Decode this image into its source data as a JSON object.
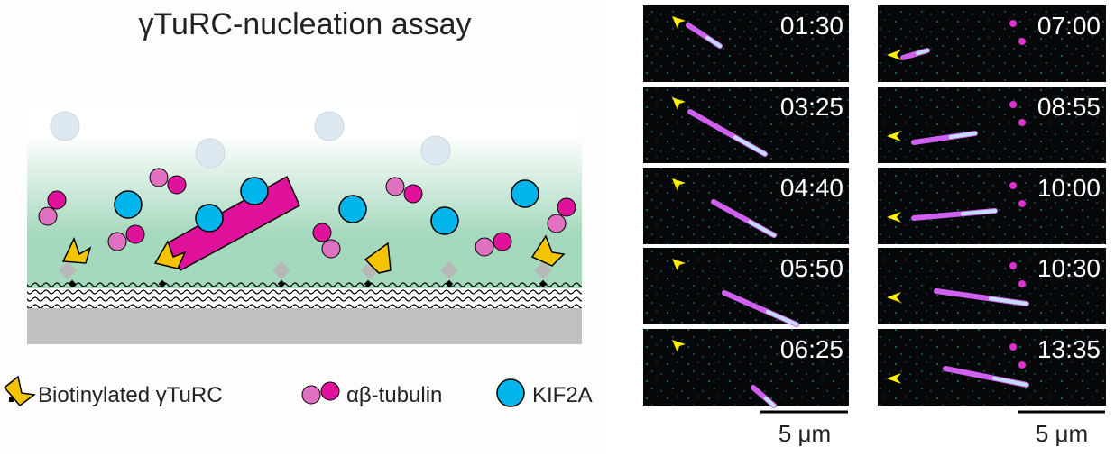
{
  "title": "γTuRC-nucleation assay",
  "legend": [
    {
      "label": "Biotinylated γTuRC"
    },
    {
      "label": "αβ-tubulin"
    },
    {
      "label": "KIF2A"
    }
  ],
  "panels": [
    {
      "timestamps": [
        "01:30",
        "03:25",
        "04:40",
        "05:50",
        "06:25"
      ],
      "scale_bar": "5 μm"
    },
    {
      "timestamps": [
        "07:00",
        "08:55",
        "10:00",
        "10:30",
        "13:35"
      ],
      "scale_bar": "5 μm"
    }
  ]
}
